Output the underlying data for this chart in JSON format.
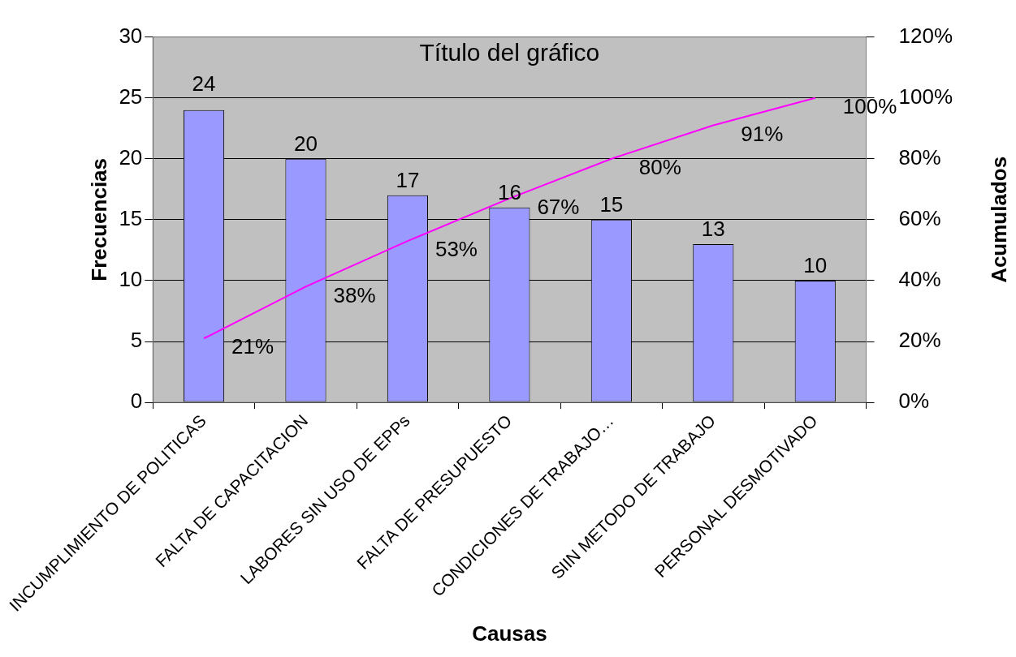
{
  "chart_data": {
    "type": "bar",
    "title": "Título del gráfico",
    "xlabel": "Causas",
    "ylabel": "Frecuencias",
    "y2label": "Acumulados",
    "categories": [
      "INCUMPLIMIENTO DE POLITICAS",
      "FALTA DE CAPACITACION",
      "LABORES SIN USO DE EPPs",
      "FALTA DE PRESUPUESTO",
      "CONDICIONES DE TRABAJO…",
      "SIIN METODO DE TRABAJO",
      "PERSONAL DESMOTIVADO"
    ],
    "series": [
      {
        "color": "#9999ff",
        "values": [
          24,
          20,
          17,
          16,
          15,
          13,
          10
        ],
        "value_labels": [
          "24",
          "20",
          "17",
          "16",
          "15",
          "13",
          "10"
        ]
      },
      {
        "type": "line",
        "axis": "y2",
        "color": "#ff00ff",
        "values": [
          21,
          38,
          53,
          67,
          80,
          91,
          100
        ],
        "value_labels": [
          "21%",
          "38%",
          "53%",
          "67%",
          "80%",
          "91%",
          "100%"
        ]
      }
    ],
    "ylim": [
      0,
      30
    ],
    "yticks": [
      0,
      5,
      10,
      15,
      20,
      25,
      30
    ],
    "y2lim": [
      0,
      120
    ],
    "y2ticks": [
      {
        "value": 0,
        "label": "0%"
      },
      {
        "value": 20,
        "label": "20%"
      },
      {
        "value": 40,
        "label": "40%"
      },
      {
        "value": 60,
        "label": "60%"
      },
      {
        "value": 80,
        "label": "80%"
      },
      {
        "value": 100,
        "label": "100%"
      },
      {
        "value": 120,
        "label": "120%"
      }
    ],
    "grid": "y",
    "legend": false,
    "marker": "none"
  }
}
